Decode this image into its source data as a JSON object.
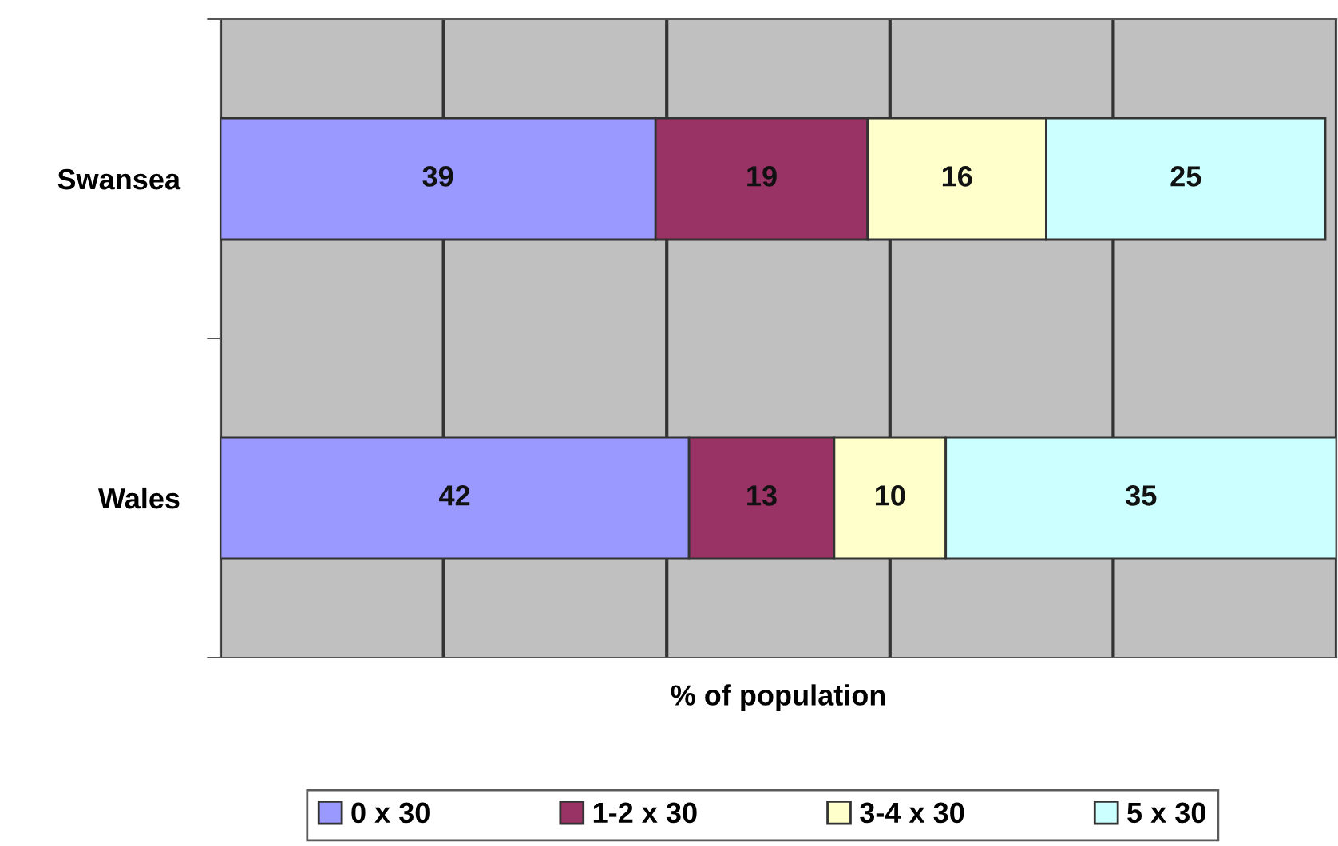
{
  "chart_data": {
    "type": "bar",
    "orientation": "horizontal",
    "stacked": true,
    "xlabel": "% of population",
    "categories": [
      "Swansea",
      "Wales"
    ],
    "series": [
      {
        "name": "0 x 30",
        "color": "#9999ff",
        "values": [
          39,
          42
        ]
      },
      {
        "name": "1-2 x 30",
        "color": "#993366",
        "values": [
          19,
          13
        ]
      },
      {
        "name": "3-4 x 30",
        "color": "#ffffcc",
        "values": [
          16,
          10
        ]
      },
      {
        "name": "5 x 30",
        "color": "#ccffff",
        "values": [
          25,
          35
        ]
      }
    ],
    "xlim": [
      0,
      100
    ],
    "xticks": [
      {
        "value": 0,
        "label": null
      },
      {
        "value": 20,
        "label": null
      },
      {
        "value": 40,
        "label": null
      },
      {
        "value": 60,
        "label": null
      },
      {
        "value": 80,
        "label": null
      },
      {
        "value": 100,
        "label": null
      }
    ],
    "tick_labels": "y",
    "grid": "x",
    "data_labels": true,
    "legend": "bottom"
  }
}
